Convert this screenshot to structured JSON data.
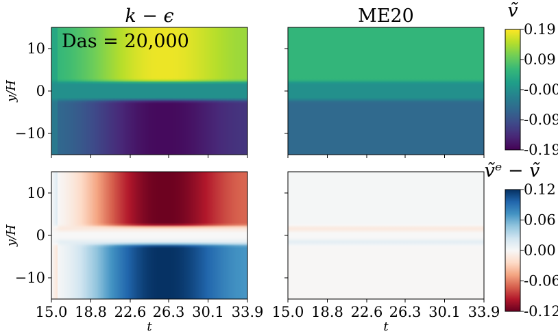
{
  "chart_data": {
    "type": "heatmap",
    "panels": [
      {
        "id": "ke-v",
        "title": "k − ϵ",
        "annotation": "Das = 20,000",
        "field": "v",
        "model": "ke"
      },
      {
        "id": "me20-v",
        "title": "ME20",
        "annotation": "",
        "field": "v",
        "model": "me20"
      },
      {
        "id": "ke-err",
        "title": "",
        "annotation": "",
        "field": "err",
        "model": "ke"
      },
      {
        "id": "me20-err",
        "title": "",
        "annotation": "",
        "field": "err",
        "model": "me20"
      }
    ],
    "x_ticks": [
      "15.0",
      "18.8",
      "22.6",
      "26.3",
      "30.1",
      "33.9"
    ],
    "xlim": [
      15.0,
      33.9
    ],
    "y_ticks": [
      "10",
      "0",
      "−10"
    ],
    "ylim": [
      -15,
      15
    ],
    "xlabel": "t",
    "ylabel": "y/H",
    "grid": false,
    "colorbars": [
      {
        "field": "v",
        "label": "ṽ",
        "colormap": "viridis",
        "range": [
          -0.19,
          0.19
        ],
        "ticks": [
          "0.19",
          "0.09",
          "-0.00",
          "-0.09",
          "-0.19"
        ]
      },
      {
        "field": "err",
        "label": "ṽᵉ − ṽ",
        "colormap": "RdBu",
        "range": [
          -0.12,
          0.12
        ],
        "ticks": [
          "0.12",
          "0.06",
          "0.00",
          "-0.06",
          "-0.12"
        ]
      }
    ]
  }
}
